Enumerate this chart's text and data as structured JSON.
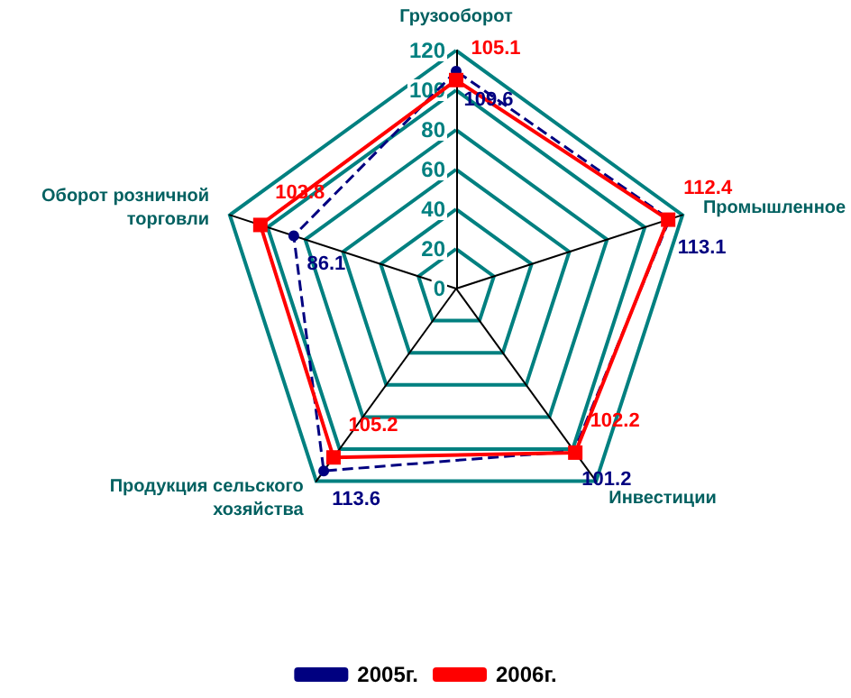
{
  "chart_data": {
    "type": "radar",
    "categories": [
      "Грузооборот",
      "Промышленное",
      "Инвестиции",
      "Продукция сельского хозяйства",
      "Оборот розничной торговли"
    ],
    "series": [
      {
        "name": "2005г.",
        "color": "#000080",
        "values": [
          109.6,
          113.1,
          101.2,
          113.6,
          86.1
        ],
        "marker": "circle",
        "line_style": "dashed"
      },
      {
        "name": "2006г.",
        "color": "#ff0000",
        "values": [
          105.1,
          112.4,
          102.2,
          105.2,
          103.8
        ],
        "marker": "square",
        "line_style": "solid"
      }
    ],
    "ylim": [
      0,
      120
    ],
    "yticks": [
      0,
      20,
      40,
      60,
      80,
      100,
      120
    ],
    "grid": true,
    "legend": "bottom",
    "data_labels": true
  }
}
